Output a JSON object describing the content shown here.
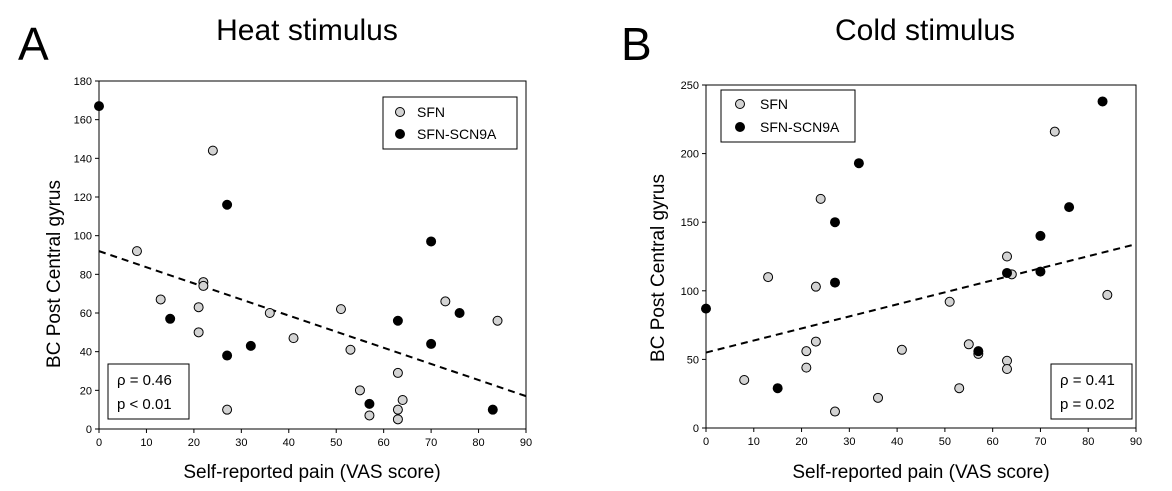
{
  "panels": [
    {
      "letter": "A",
      "title": "Heat stimulus",
      "stats": [
        "ρ = 0.46",
        "p < 0.01"
      ]
    },
    {
      "letter": "B",
      "title": "Cold stimulus",
      "stats": [
        "ρ = 0.41",
        "p = 0.02"
      ]
    }
  ],
  "chart_data": [
    {
      "type": "scatter",
      "title": "Heat stimulus",
      "xlabel": "Self-reported pain (VAS score)",
      "ylabel": "BC Post Central gyrus",
      "xlim": [
        0,
        90
      ],
      "ylim": [
        0,
        180
      ],
      "xticks": [
        0,
        10,
        20,
        30,
        40,
        50,
        60,
        70,
        80,
        90
      ],
      "yticks": [
        0,
        20,
        40,
        60,
        80,
        100,
        120,
        140,
        160,
        180
      ],
      "legend_position": "top-right",
      "series": [
        {
          "name": "SFN",
          "marker": "open-circle",
          "color": "#d3d3d3",
          "points": [
            [
              8,
              92
            ],
            [
              13,
              67
            ],
            [
              21,
              63
            ],
            [
              21,
              50
            ],
            [
              22,
              76
            ],
            [
              22,
              74
            ],
            [
              24,
              144
            ],
            [
              27,
              10
            ],
            [
              36,
              60
            ],
            [
              41,
              47
            ],
            [
              51,
              62
            ],
            [
              53,
              41
            ],
            [
              55,
              20
            ],
            [
              57,
              7
            ],
            [
              63,
              29
            ],
            [
              63,
              10
            ],
            [
              63,
              5
            ],
            [
              64,
              15
            ],
            [
              73,
              66
            ],
            [
              84,
              56
            ]
          ]
        },
        {
          "name": "SFN-SCN9A",
          "marker": "filled-circle",
          "color": "#000000",
          "points": [
            [
              0,
              167
            ],
            [
              15,
              57
            ],
            [
              27,
              116
            ],
            [
              27,
              38
            ],
            [
              32,
              43
            ],
            [
              57,
              13
            ],
            [
              63,
              56
            ],
            [
              70,
              97
            ],
            [
              70,
              44
            ],
            [
              76,
              60
            ],
            [
              83,
              10
            ]
          ]
        }
      ],
      "trendline": {
        "style": "dashed",
        "from": [
          0,
          92
        ],
        "to": [
          90,
          17
        ]
      }
    },
    {
      "type": "scatter",
      "title": "Cold stimulus",
      "xlabel": "Self-reported pain (VAS score)",
      "ylabel": "BC Post Central gyrus",
      "xlim": [
        0,
        90
      ],
      "ylim": [
        0,
        250
      ],
      "xticks": [
        0,
        10,
        20,
        30,
        40,
        50,
        60,
        70,
        80,
        90
      ],
      "yticks": [
        0,
        50,
        100,
        150,
        200,
        250
      ],
      "legend_position": "top-left",
      "series": [
        {
          "name": "SFN",
          "marker": "open-circle",
          "color": "#d3d3d3",
          "points": [
            [
              8,
              35
            ],
            [
              13,
              110
            ],
            [
              21,
              56
            ],
            [
              21,
              44
            ],
            [
              23,
              103
            ],
            [
              23,
              63
            ],
            [
              24,
              167
            ],
            [
              27,
              12
            ],
            [
              36,
              22
            ],
            [
              41,
              57
            ],
            [
              51,
              92
            ],
            [
              53,
              29
            ],
            [
              55,
              61
            ],
            [
              57,
              54
            ],
            [
              63,
              125
            ],
            [
              63,
              49
            ],
            [
              63,
              43
            ],
            [
              64,
              112
            ],
            [
              73,
              216
            ],
            [
              84,
              97
            ]
          ]
        },
        {
          "name": "SFN-SCN9A",
          "marker": "filled-circle",
          "color": "#000000",
          "points": [
            [
              0,
              87
            ],
            [
              15,
              29
            ],
            [
              27,
              150
            ],
            [
              27,
              106
            ],
            [
              32,
              193
            ],
            [
              57,
              56
            ],
            [
              63,
              113
            ],
            [
              70,
              140
            ],
            [
              70,
              114
            ],
            [
              76,
              161
            ],
            [
              83,
              238
            ]
          ]
        }
      ],
      "trendline": {
        "style": "dashed",
        "from": [
          0,
          55
        ],
        "to": [
          90,
          134
        ]
      }
    }
  ]
}
